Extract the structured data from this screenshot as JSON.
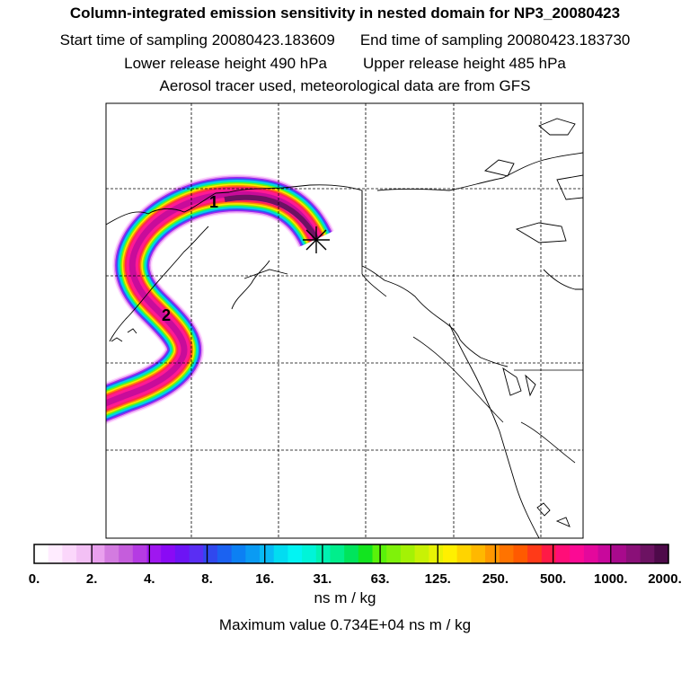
{
  "header": {
    "title": "Column-integrated emission sensitivity in nested domain for NP3_20080423",
    "start": "Start time of sampling 20080423.183609",
    "end": "End time of sampling 20080423.183730",
    "lower": "Lower release height  490 hPa",
    "upper": "Upper release height  485 hPa",
    "tracer": "Aerosol tracer used, meteorological data are from GFS"
  },
  "map": {
    "plume_labels": [
      "1",
      "2"
    ],
    "release_marker": "asterisk",
    "coastline_color": "#000000",
    "grid_style": "dashed"
  },
  "colorbar": {
    "ticks": [
      "0.",
      "2.",
      "4.",
      "8.",
      "16.",
      "31.",
      "63.",
      "125.",
      "250.",
      "500.",
      "1000.",
      "2000."
    ],
    "unit": "ns m / kg",
    "colors": [
      "#ffffff",
      "#ffecff",
      "#fbd7fb",
      "#f3c0f5",
      "#e9a0ee",
      "#d37be0",
      "#c55ddc",
      "#b53be3",
      "#9f17f0",
      "#8a0af5",
      "#6d14f5",
      "#5a2ef3",
      "#3048ee",
      "#1b62f1",
      "#0c80f3",
      "#0a9bf3",
      "#08baf5",
      "#02dcf1",
      "#02f4f3",
      "#00f4d8",
      "#00f2b2",
      "#00ee8c",
      "#00e45c",
      "#12e41f",
      "#5af20a",
      "#7ff20a",
      "#a4f205",
      "#c8f205",
      "#e8f205",
      "#fff000",
      "#ffd400",
      "#ffb800",
      "#ff9800",
      "#ff7300",
      "#ff5a00",
      "#ff3a18",
      "#ff1a46",
      "#ff0e78",
      "#fb0a94",
      "#e4089c",
      "#c8089c",
      "#a80a8c",
      "#8a1078",
      "#6c1262",
      "#4e0a4a"
    ]
  },
  "max_value": "Maximum value  0.734E+04 ns m / kg"
}
